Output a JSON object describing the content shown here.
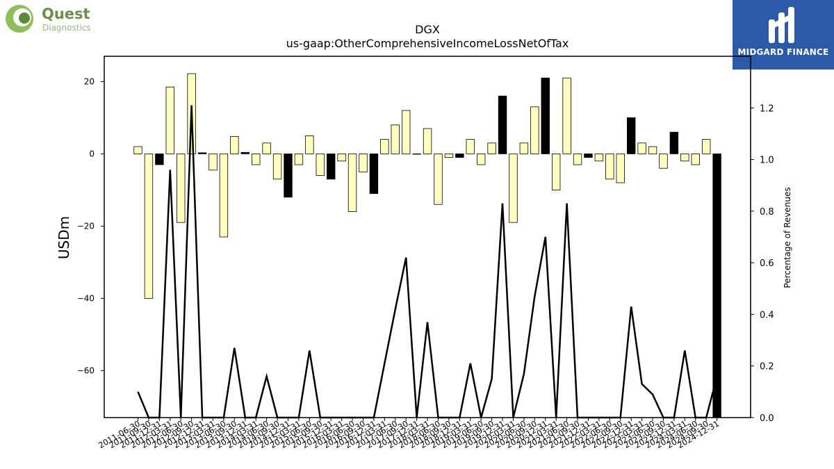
{
  "logos": {
    "left_brand": "Quest",
    "left_sub": "Diagnostics",
    "right_brand": "MIDGARD FINANCE"
  },
  "colors": {
    "bar_normal": "#ffffc0",
    "bar_highlight": "#000000",
    "line": "#000000",
    "brand_green": "#5a8a3c",
    "brand_blue": "#2a5aa8"
  },
  "chart_data": {
    "type": "bar",
    "title": "DGX",
    "subtitle": "us-gaap:OtherComprehensiveIncomeLossNetOfTax",
    "ylabel": "USDm",
    "y2label": "Percentage of Revenues",
    "ylim": [
      -73,
      27
    ],
    "y2lim": [
      0,
      1.4
    ],
    "yticks": [
      20,
      0,
      -20,
      -40,
      -60
    ],
    "ytick_labels": [
      "20",
      "0",
      "−20",
      "−40",
      "−60"
    ],
    "y2ticks": [
      0.0,
      0.2,
      0.4,
      0.6,
      0.8,
      1.0,
      1.2
    ],
    "y2tick_labels": [
      "0.0",
      "0.2",
      "0.4",
      "0.6",
      "0.8",
      "1.0",
      "1.2"
    ],
    "categories": [
      "2011-06-30",
      "2011-09-30",
      "2011-12-31",
      "2012-03-31",
      "2012-06-30",
      "2012-09-30",
      "2012-12-31",
      "2013-03-31",
      "2013-06-30",
      "2013-09-30",
      "2013-12-31",
      "2014-03-31",
      "2014-06-30",
      "2014-09-30",
      "2014-12-31",
      "2015-03-31",
      "2015-06-30",
      "2015-09-30",
      "2015-12-31",
      "2016-03-31",
      "2016-06-30",
      "2016-09-30",
      "2016-12-31",
      "2017-03-31",
      "2017-06-30",
      "2017-09-30",
      "2017-12-31",
      "2018-03-31",
      "2018-06-30",
      "2018-09-30",
      "2018-12-31",
      "2019-03-31",
      "2019-06-30",
      "2019-09-30",
      "2019-12-31",
      "2020-03-31",
      "2020-06-30",
      "2020-09-30",
      "2020-12-31",
      "2021-03-31",
      "2021-06-30",
      "2021-09-30",
      "2021-12-31",
      "2022-03-31",
      "2022-06-30",
      "2022-09-30",
      "2022-12-31",
      "2023-03-31",
      "2023-06-30",
      "2023-09-30",
      "2023-12-31",
      "2024-03-31",
      "2024-06-30",
      "2024-09-30",
      "2024-12-31"
    ],
    "xtick_labels": [
      "2011-06-30",
      "2011-09-30",
      "2011-12-31",
      "2012-03-31",
      "2012-06-30",
      "2012-09-30",
      "2012-12-31",
      "2013-03-31",
      "2013-06-30",
      "2013-09-30",
      "2013-12-31",
      "2014-03-31",
      "2014-06-30",
      "2014-09-30",
      "2014-12-31",
      "2015-03-31",
      "2015-06-30",
      "2015-09-30",
      "2015-12-31",
      "2016-03-31",
      "2016-06-30",
      "2016-09-30",
      "2016-12-31",
      "2017-03-31",
      "2017-06-30",
      "2017-09-30",
      "2017-12-31",
      "2018-03-31",
      "2018-06-30",
      "2018-09-30",
      "2018-12-31",
      "2019-03-31",
      "2019-06-30",
      "2019-09-30",
      "2019-12-31",
      "2020-03-31",
      "2020-06-30",
      "2020-09-30",
      "2020-12-31",
      "2021-03-31",
      "2021-06-30",
      "2021-09-30",
      "2021-12-31",
      "2022-03-31",
      "2022-06-30",
      "2022-09-30",
      "2022-12-31",
      "2023-03-31",
      "2023-06-30",
      "2023-09-30",
      "2023-12-31",
      "2024-03-31",
      "2024-06-30",
      "2024-09-30",
      "2024-12-31"
    ],
    "values": [
      2,
      -40,
      -3,
      18.5,
      -19,
      22.2,
      0.3,
      -4.5,
      -23,
      4.8,
      0.4,
      -3,
      3,
      -7,
      -12,
      -3,
      5,
      -6,
      -7,
      -2,
      -16,
      -5,
      -11,
      4,
      8,
      12,
      0,
      7,
      -14,
      -1,
      -1,
      4,
      -3,
      3,
      16,
      -19,
      3,
      13,
      21,
      -10,
      21,
      -3,
      -1,
      -2,
      -7,
      -8,
      10,
      3,
      2,
      -4,
      6,
      -2,
      -3,
      4,
      -73
    ],
    "highlight": [
      false,
      false,
      true,
      false,
      false,
      false,
      true,
      false,
      false,
      false,
      true,
      false,
      false,
      false,
      true,
      false,
      false,
      false,
      true,
      false,
      false,
      false,
      true,
      false,
      false,
      false,
      true,
      false,
      false,
      false,
      true,
      false,
      false,
      false,
      true,
      false,
      false,
      false,
      true,
      false,
      false,
      false,
      true,
      false,
      false,
      false,
      true,
      false,
      false,
      false,
      true,
      false,
      false,
      false,
      true
    ],
    "line_values": [
      0.1,
      0,
      0,
      0.96,
      0,
      1.21,
      0,
      0,
      0,
      0.27,
      0,
      0,
      0.16,
      0,
      0,
      0,
      0.26,
      0,
      0,
      0,
      0,
      0,
      0,
      0.21,
      0.42,
      0.62,
      0,
      0.37,
      0,
      0,
      0,
      0.21,
      0,
      0.15,
      0.83,
      0,
      0.17,
      0.47,
      0.7,
      0,
      0.83,
      0,
      0,
      0,
      0,
      0,
      0.43,
      0.13,
      0.09,
      0,
      0,
      0.26,
      0,
      0,
      0.16
    ],
    "grid": false,
    "legend": "none"
  }
}
